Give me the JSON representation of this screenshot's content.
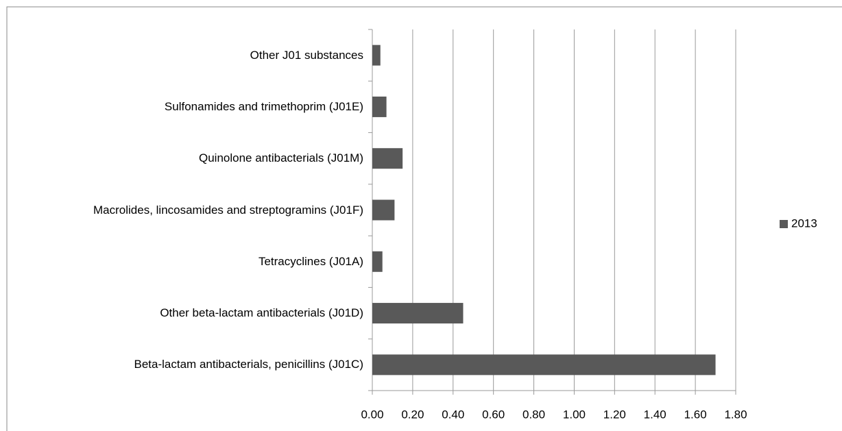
{
  "chart_data": {
    "type": "bar",
    "orientation": "horizontal",
    "categories": [
      "Other J01 substances",
      "Sulfonamides and trimethoprim (J01E)",
      "Quinolone antibacterials (J01M)",
      "Macrolides, lincosamides and streptogramins (J01F)",
      "Tetracyclines (J01A)",
      "Other beta-lactam antibacterials (J01D)",
      "Beta-lactam antibacterials, penicillins (J01C)"
    ],
    "series": [
      {
        "name": "2013",
        "color": "#595959",
        "values": [
          0.04,
          0.07,
          0.15,
          0.11,
          0.05,
          0.45,
          1.7
        ]
      }
    ],
    "xlim": [
      0,
      1.8
    ],
    "xticks": [
      {
        "value": 0,
        "label": "0.00"
      },
      {
        "value": 0.2,
        "label": "0.20"
      },
      {
        "value": 0.4,
        "label": "0.40"
      },
      {
        "value": 0.6,
        "label": "0.60"
      },
      {
        "value": 0.8,
        "label": "0.80"
      },
      {
        "value": 1.0,
        "label": "1.00"
      },
      {
        "value": 1.2,
        "label": "1.20"
      },
      {
        "value": 1.4,
        "label": "1.40"
      },
      {
        "value": 1.6,
        "label": "1.60"
      },
      {
        "value": 1.8,
        "label": "1.80"
      }
    ],
    "grid": true,
    "legend": "right"
  }
}
